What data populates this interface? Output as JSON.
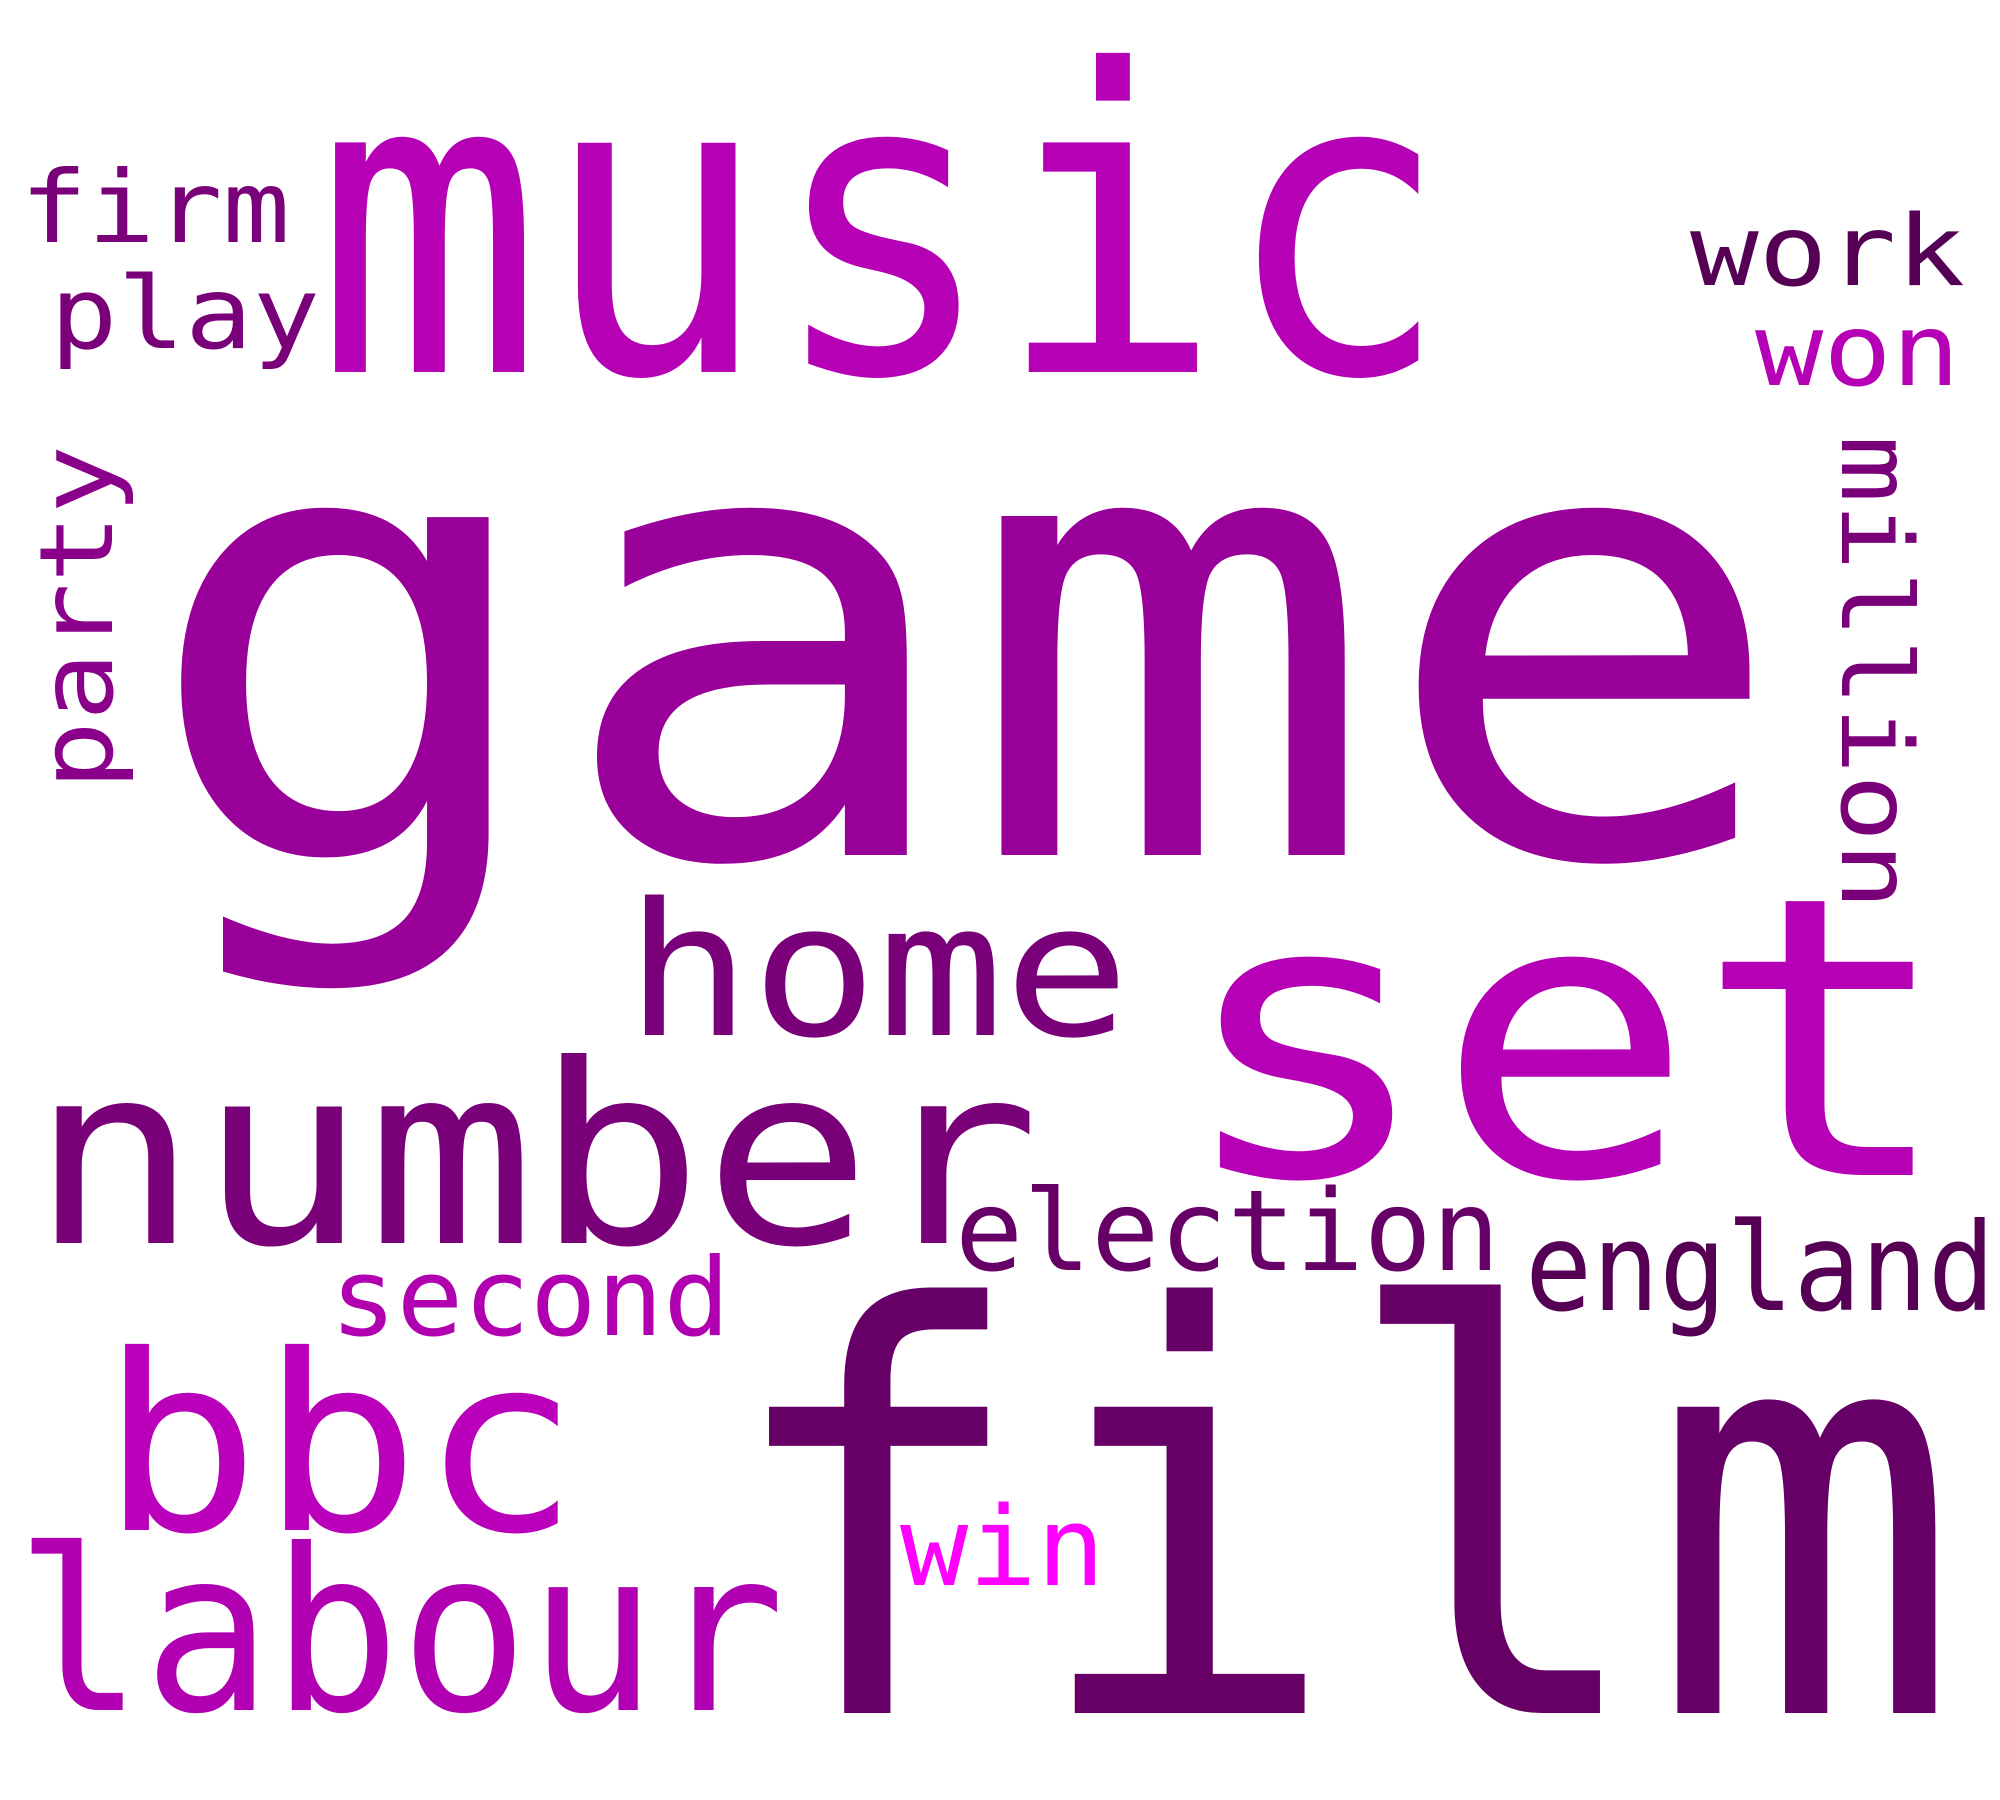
{
  "words": [
    {
      "id": "game",
      "text": "game",
      "color": "#990099"
    },
    {
      "id": "music",
      "text": "music",
      "color": "#b600b6"
    },
    {
      "id": "film",
      "text": "film",
      "color": "#660066"
    },
    {
      "id": "set",
      "text": "set",
      "color": "#b600b6"
    },
    {
      "id": "number",
      "text": "number",
      "color": "#7a007a"
    },
    {
      "id": "bbc",
      "text": "bbc",
      "color": "#bb00bb"
    },
    {
      "id": "labour",
      "text": "labour",
      "color": "#b100b1"
    },
    {
      "id": "home",
      "text": "home",
      "color": "#7a007a"
    },
    {
      "id": "election",
      "text": "election",
      "color": "#660066"
    },
    {
      "id": "england",
      "text": "england",
      "color": "#550055"
    },
    {
      "id": "second",
      "text": "second",
      "color": "#b000b0"
    },
    {
      "id": "win",
      "text": "win",
      "color": "#ff00ff"
    },
    {
      "id": "million",
      "text": "million",
      "color": "#7a007a"
    },
    {
      "id": "party",
      "text": "party",
      "color": "#8b008b"
    },
    {
      "id": "firm",
      "text": "firm",
      "color": "#7a007a"
    },
    {
      "id": "play",
      "text": "play",
      "color": "#7a007a"
    },
    {
      "id": "work",
      "text": "work",
      "color": "#550055"
    },
    {
      "id": "won",
      "text": "won",
      "color": "#b600b6"
    }
  ]
}
